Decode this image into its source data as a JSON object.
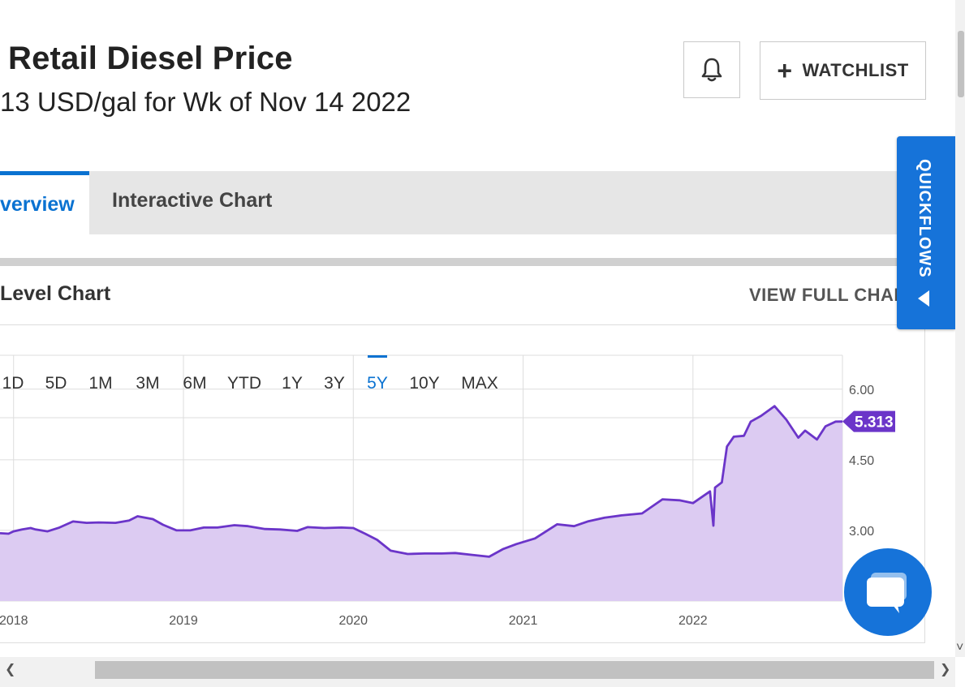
{
  "header": {
    "title": "Retail Diesel Price",
    "subtitle": "13 USD/gal for Wk of Nov 14 2022",
    "watchlist_label": "WATCHLIST"
  },
  "tabs": [
    {
      "label": "verview",
      "active": true
    },
    {
      "label": "Interactive Chart",
      "active": false
    }
  ],
  "section": {
    "title": "Level Chart",
    "view_full_label": "VIEW FULL CHAR"
  },
  "quickflows": {
    "label": "QUICKFLOWS"
  },
  "colors": {
    "accent": "#0a72d1",
    "series": "#6b35c9",
    "fill": "#dccbf2"
  },
  "chart_data": {
    "type": "area",
    "range_buttons": [
      "1D",
      "5D",
      "1M",
      "3M",
      "6M",
      "YTD",
      "1Y",
      "3Y",
      "5Y",
      "10Y",
      "MAX"
    ],
    "active_range": "5Y",
    "x_ticks": [
      "2018",
      "2019",
      "2020",
      "2021",
      "2022"
    ],
    "y_ticks": [
      3.0,
      4.5,
      6.0
    ],
    "ylim": [
      1.5,
      6.72
    ],
    "xlim": [
      2017.92,
      2022.88
    ],
    "last_value": "5.313",
    "grid": true,
    "series": [
      {
        "points": [
          [
            2017.92,
            2.94
          ],
          [
            2017.97,
            2.93
          ],
          [
            2018.0,
            2.98
          ],
          [
            2018.05,
            3.02
          ],
          [
            2018.1,
            3.05
          ],
          [
            2018.13,
            3.02
          ],
          [
            2018.2,
            2.98
          ],
          [
            2018.27,
            3.06
          ],
          [
            2018.35,
            3.19
          ],
          [
            2018.43,
            3.16
          ],
          [
            2018.5,
            3.17
          ],
          [
            2018.6,
            3.16
          ],
          [
            2018.68,
            3.21
          ],
          [
            2018.73,
            3.3
          ],
          [
            2018.82,
            3.24
          ],
          [
            2018.88,
            3.12
          ],
          [
            2018.96,
            3.0
          ],
          [
            2019.04,
            3.0
          ],
          [
            2019.12,
            3.06
          ],
          [
            2019.2,
            3.06
          ],
          [
            2019.3,
            3.11
          ],
          [
            2019.38,
            3.09
          ],
          [
            2019.48,
            3.03
          ],
          [
            2019.57,
            3.02
          ],
          [
            2019.67,
            2.99
          ],
          [
            2019.73,
            3.07
          ],
          [
            2019.83,
            3.05
          ],
          [
            2019.93,
            3.06
          ],
          [
            2020.0,
            3.05
          ],
          [
            2020.07,
            2.93
          ],
          [
            2020.14,
            2.8
          ],
          [
            2020.22,
            2.57
          ],
          [
            2020.32,
            2.5
          ],
          [
            2020.42,
            2.51
          ],
          [
            2020.52,
            2.51
          ],
          [
            2020.6,
            2.52
          ],
          [
            2020.7,
            2.48
          ],
          [
            2020.8,
            2.44
          ],
          [
            2020.88,
            2.6
          ],
          [
            2020.96,
            2.71
          ],
          [
            2021.07,
            2.83
          ],
          [
            2021.2,
            3.13
          ],
          [
            2021.3,
            3.09
          ],
          [
            2021.38,
            3.19
          ],
          [
            2021.48,
            3.27
          ],
          [
            2021.58,
            3.32
          ],
          [
            2021.7,
            3.36
          ],
          [
            2021.82,
            3.66
          ],
          [
            2021.92,
            3.64
          ],
          [
            2022.0,
            3.58
          ],
          [
            2022.1,
            3.83
          ],
          [
            2022.12,
            3.1
          ],
          [
            2022.13,
            3.91
          ],
          [
            2022.17,
            4.02
          ],
          [
            2022.2,
            4.78
          ],
          [
            2022.24,
            4.99
          ],
          [
            2022.3,
            5.01
          ],
          [
            2022.34,
            5.31
          ],
          [
            2022.4,
            5.43
          ],
          [
            2022.48,
            5.64
          ],
          [
            2022.55,
            5.35
          ],
          [
            2022.62,
            4.97
          ],
          [
            2022.66,
            5.12
          ],
          [
            2022.73,
            4.93
          ],
          [
            2022.78,
            5.21
          ],
          [
            2022.84,
            5.31
          ],
          [
            2022.88,
            5.313
          ]
        ]
      }
    ]
  }
}
